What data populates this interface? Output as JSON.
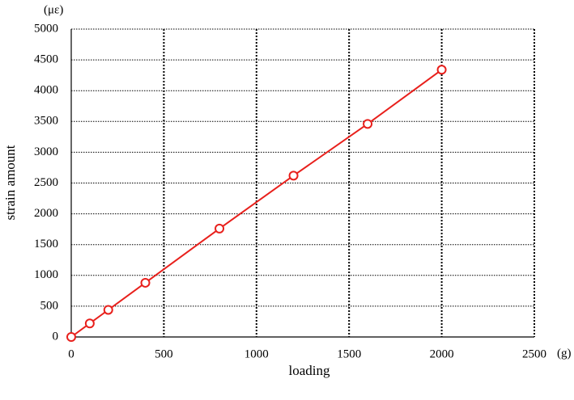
{
  "chart_data": {
    "type": "line",
    "x_label": "loading",
    "y_label": "strain amount",
    "x_unit": "(g)",
    "y_unit": "(με)",
    "x": [
      0,
      100,
      200,
      400,
      800,
      1200,
      1600,
      2000
    ],
    "series": [
      {
        "color": "#e8201c",
        "values": [
          0,
          220,
          440,
          880,
          1760,
          2620,
          3460,
          4340
        ]
      }
    ],
    "xlim": [
      0,
      2500
    ],
    "xticks": [
      0,
      500,
      1000,
      1500,
      2000,
      2500
    ],
    "ylim": [
      0,
      5000
    ],
    "yticks": [
      0,
      500,
      1000,
      1500,
      2000,
      2500,
      3000,
      3500,
      4000,
      4500,
      5000
    ],
    "grid": true,
    "markers": true
  }
}
